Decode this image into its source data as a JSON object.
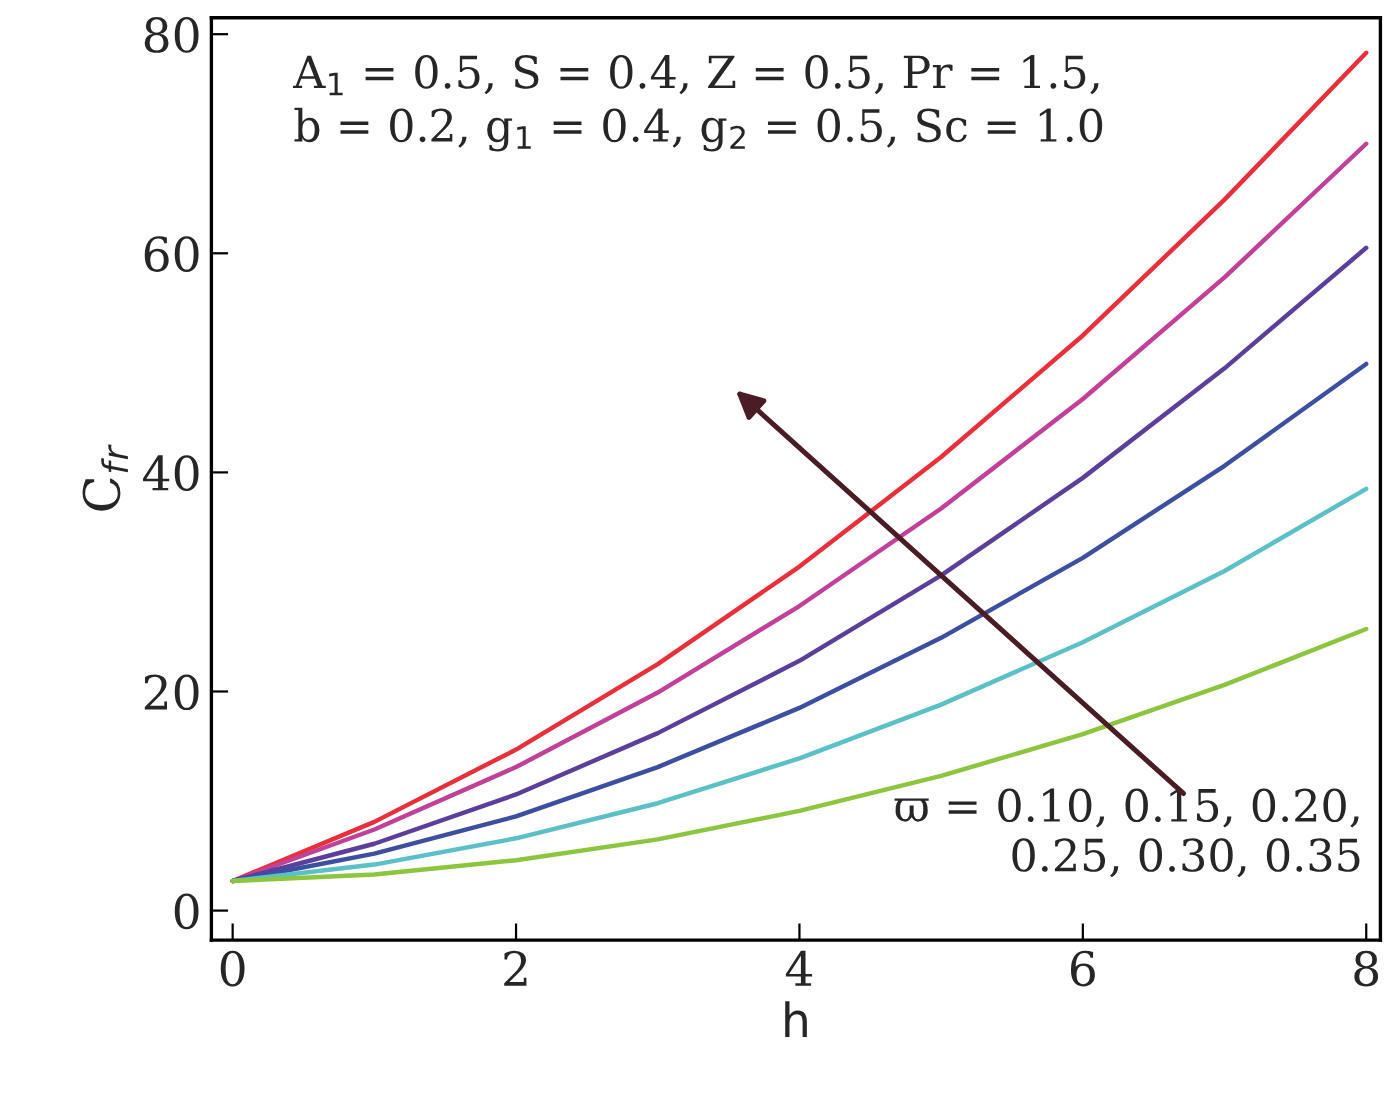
{
  "chart_data": {
    "type": "line",
    "xlabel": "h",
    "ylabel": "C$_{f}$$_{r}$",
    "x": [
      0,
      1,
      2,
      3,
      4,
      5,
      6,
      7,
      8
    ],
    "series": [
      {
        "color": "#e8303a",
        "values": [
          2.7,
          8.1,
          14.7,
          22.5,
          31.4,
          41.4,
          52.5,
          64.9,
          78.3
        ]
      },
      {
        "color": "#c0409a",
        "values": [
          2.7,
          7.4,
          13.1,
          19.9,
          27.8,
          36.7,
          46.7,
          57.8,
          70.0
        ]
      },
      {
        "color": "#5b3f9a",
        "values": [
          2.7,
          6.1,
          10.6,
          16.2,
          22.8,
          30.6,
          39.5,
          49.5,
          60.5
        ]
      },
      {
        "color": "#3d4fa0",
        "values": [
          2.7,
          5.2,
          8.6,
          13.1,
          18.5,
          24.9,
          32.2,
          40.6,
          49.9
        ]
      },
      {
        "color": "#5bc0c8",
        "values": [
          2.7,
          4.2,
          6.6,
          9.8,
          13.9,
          18.8,
          24.5,
          31.0,
          38.5
        ]
      },
      {
        "color": "#8cc63f",
        "values": [
          2.7,
          3.3,
          4.6,
          6.5,
          9.1,
          12.3,
          16.1,
          20.6,
          25.7
        ]
      }
    ],
    "xlim": [
      -0.15,
      8.1
    ],
    "ylim": [
      -2.7,
      81.5
    ],
    "xticks": [
      0,
      2,
      4,
      6,
      8
    ],
    "yticks": [
      0,
      20,
      40,
      60,
      80
    ],
    "grid": false,
    "legend": false,
    "marker": "none",
    "line_style": "solid",
    "annotations": [
      "A$_{1}$ = 0.5, S = 0.4, Z = 0.5, Pr = 1.5,\nb = 0.2, g$_{1}$ = 0.4, g$_{2}$ = 0.5, Sc = 1.0",
      "ϖ = 0.10, 0.15, 0.20,\n0.25, 0.30, 0.35"
    ]
  }
}
